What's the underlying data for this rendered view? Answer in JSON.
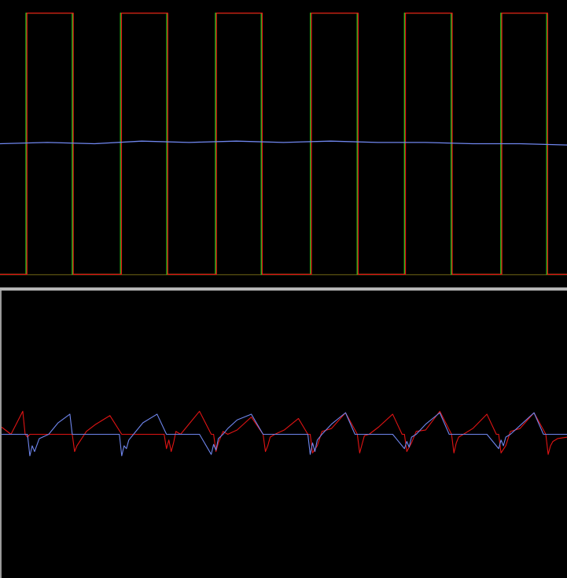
{
  "colors": {
    "background": "#000000",
    "divider": "#b4b4b4",
    "green": "#1ed21e",
    "red": "#e01414",
    "blue": "#6f86ee",
    "olive": "#9a8a1c"
  },
  "chart_data": [
    {
      "type": "line",
      "title": "",
      "xlabel": "",
      "ylabel": "",
      "grid": false,
      "legend": "none",
      "xlim": [
        0,
        12
      ],
      "ylim": [
        -1.1,
        1.1
      ],
      "series": [
        {
          "color": "#1ed21e",
          "kind": "square",
          "phase": 0.0,
          "edges_x": [
            0.55,
            1.53,
            2.55,
            3.53,
            4.56,
            5.53,
            6.57,
            7.56,
            8.56,
            9.55,
            10.6,
            11.57
          ],
          "high": 1.0,
          "low": -1.0
        },
        {
          "color": "#e01414",
          "kind": "square",
          "phase": 0.02,
          "edges_x": [
            0.57,
            1.55,
            2.57,
            3.55,
            4.58,
            5.55,
            6.59,
            7.58,
            8.58,
            9.57,
            10.62,
            11.59
          ],
          "high": 1.0,
          "low": -1.0
        },
        {
          "color": "#6f86ee",
          "kind": "line",
          "x": [
            0,
            1,
            2,
            3,
            4,
            5,
            6,
            7,
            8,
            9,
            10,
            11,
            12
          ],
          "y": [
            0.0,
            0.01,
            0.0,
            0.02,
            0.01,
            0.02,
            0.01,
            0.02,
            0.01,
            0.01,
            0.0,
            0.0,
            -0.01
          ]
        }
      ]
    },
    {
      "type": "line",
      "title": "",
      "xlabel": "",
      "ylabel": "",
      "grid": false,
      "legend": "none",
      "xlim": [
        0,
        12
      ],
      "ylim": [
        -1.0,
        1.0
      ],
      "series": [
        {
          "color": "#e01414",
          "x": [
            0,
            0.2,
            0.45,
            0.5,
            0.55,
            0.6,
            0.7,
            0.8,
            1.0,
            1.2,
            1.5,
            1.55,
            1.6,
            1.8,
            2.0,
            2.3,
            2.55,
            2.6,
            2.8,
            3.0,
            3.3,
            3.45,
            3.5,
            3.55,
            3.6,
            3.65,
            3.7,
            3.8,
            4.0,
            4.2,
            4.45,
            4.5,
            4.55,
            4.6,
            4.7,
            4.8,
            5.0,
            5.3,
            5.55,
            5.6,
            5.65,
            5.7,
            5.8,
            6.0,
            6.3,
            6.5,
            6.55,
            6.6,
            6.7,
            6.8,
            7.0,
            7.3,
            7.55,
            7.6,
            7.65,
            7.7,
            7.8,
            8.0,
            8.3,
            8.5,
            8.55,
            8.6,
            8.7,
            8.8,
            9.0,
            9.3,
            9.55,
            9.6,
            9.65,
            9.7,
            9.8,
            10.0,
            10.3,
            10.5,
            10.55,
            10.6,
            10.7,
            10.8,
            11.0,
            11.3,
            11.55,
            11.6,
            11.65,
            11.7,
            11.8,
            12.0
          ],
          "y": [
            0.05,
            0.0,
            0.16,
            0.0,
            -0.02,
            0.0,
            0.0,
            0.0,
            0.0,
            0.0,
            0.0,
            -0.12,
            -0.08,
            0.02,
            0.07,
            0.13,
            0.0,
            0.0,
            0.0,
            0.0,
            0.0,
            0.0,
            -0.1,
            -0.04,
            -0.12,
            -0.06,
            0.02,
            0.0,
            0.08,
            0.16,
            0.0,
            0.0,
            -0.12,
            -0.06,
            0.02,
            0.0,
            0.03,
            0.12,
            0.0,
            -0.12,
            -0.08,
            -0.02,
            0.0,
            0.03,
            0.11,
            0.0,
            0.0,
            -0.13,
            -0.08,
            0.02,
            0.04,
            0.15,
            0.0,
            -0.13,
            -0.07,
            -0.01,
            0.0,
            0.05,
            0.14,
            0.0,
            0.0,
            -0.12,
            -0.06,
            0.02,
            0.03,
            0.16,
            0.0,
            -0.13,
            -0.06,
            -0.02,
            0.0,
            0.04,
            0.14,
            0.0,
            0.0,
            -0.13,
            -0.08,
            0.02,
            0.04,
            0.15,
            0.0,
            -0.14,
            -0.08,
            -0.05,
            -0.03,
            -0.02
          ]
        },
        {
          "color": "#6f86ee",
          "x": [
            0,
            0.3,
            0.55,
            0.6,
            0.65,
            0.7,
            0.8,
            1.0,
            1.2,
            1.45,
            1.5,
            1.55,
            1.6,
            1.8,
            2.0,
            2.3,
            2.5,
            2.55,
            2.6,
            2.65,
            2.7,
            2.8,
            3.0,
            3.3,
            3.5,
            3.55,
            3.6,
            3.7,
            3.8,
            4.0,
            4.2,
            4.45,
            4.5,
            4.55,
            4.6,
            4.7,
            4.8,
            5.0,
            5.3,
            5.55,
            5.6,
            5.7,
            5.8,
            6.0,
            6.3,
            6.5,
            6.55,
            6.6,
            6.65,
            6.7,
            6.8,
            7.0,
            7.3,
            7.5,
            7.55,
            7.6,
            7.7,
            7.8,
            8.0,
            8.3,
            8.55,
            8.6,
            8.65,
            8.7,
            8.8,
            9.0,
            9.3,
            9.5,
            9.55,
            9.6,
            9.7,
            9.8,
            10.0,
            10.3,
            10.55,
            10.6,
            10.65,
            10.7,
            10.8,
            11.0,
            11.3,
            11.5,
            11.55,
            11.6,
            11.7,
            11.8,
            12.0
          ],
          "y": [
            0.0,
            0.0,
            0.0,
            -0.15,
            -0.08,
            -0.12,
            -0.03,
            0.0,
            0.08,
            0.14,
            0.0,
            0.0,
            0.0,
            0.0,
            0.0,
            0.0,
            0.0,
            -0.15,
            -0.08,
            -0.1,
            -0.04,
            0.0,
            0.08,
            0.14,
            0.0,
            0.0,
            0.0,
            0.0,
            0.0,
            0.0,
            0.0,
            -0.14,
            -0.07,
            -0.11,
            -0.03,
            0.0,
            0.04,
            0.1,
            0.14,
            0.0,
            0.0,
            0.0,
            0.0,
            0.0,
            0.0,
            0.0,
            -0.14,
            -0.06,
            -0.12,
            -0.04,
            0.0,
            0.07,
            0.15,
            0.0,
            0.0,
            0.0,
            0.0,
            0.0,
            0.0,
            0.0,
            -0.1,
            -0.05,
            -0.09,
            -0.02,
            0.0,
            0.07,
            0.15,
            0.0,
            0.0,
            0.0,
            0.0,
            0.0,
            0.0,
            0.0,
            -0.1,
            -0.04,
            -0.08,
            -0.02,
            0.0,
            0.06,
            0.15,
            0.0,
            0.0,
            0.0,
            0.0,
            0.0,
            0.0
          ]
        }
      ]
    }
  ]
}
